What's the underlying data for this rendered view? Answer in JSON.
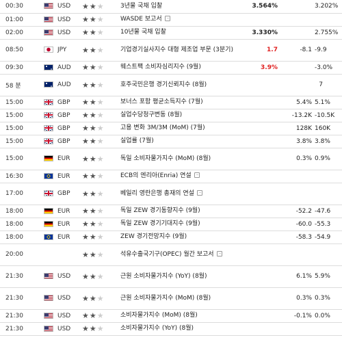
{
  "rows": [
    {
      "time": "00:30",
      "flag": "us",
      "currency": "USD",
      "stars": 2,
      "event": "3년물 국채 입찰",
      "doc": false,
      "actual": "3.564%",
      "actual_color": "",
      "forecast": "",
      "previous": "3.202%",
      "h": 20
    },
    {
      "time": "01:00",
      "flag": "us",
      "currency": "USD",
      "stars": 2,
      "event": "WASDE 보고서",
      "doc": true,
      "actual": "",
      "actual_color": "",
      "forecast": "",
      "previous": "",
      "h": 20
    },
    {
      "time": "02:00",
      "flag": "us",
      "currency": "USD",
      "stars": 2,
      "event": "10년물 국채 입찰",
      "doc": false,
      "actual": "3.330%",
      "actual_color": "",
      "forecast": "",
      "previous": "2.755%",
      "h": 20
    },
    {
      "time": "08:50",
      "flag": "jp",
      "currency": "JPY",
      "stars": 2,
      "event": "기업경기실사지수 대형 제조업 부문 (3분기)",
      "doc": false,
      "actual": "1.7",
      "actual_color": "red",
      "forecast": "-8.1",
      "previous": "-9.9",
      "h": 33
    },
    {
      "time": "09:30",
      "flag": "au",
      "currency": "AUD",
      "stars": 2,
      "event": "웨스트팩 소비자심리지수 (9월)",
      "doc": false,
      "actual": "3.9%",
      "actual_color": "red",
      "forecast": "",
      "previous": "-3.0%",
      "h": 20
    },
    {
      "time": "58 분",
      "flag": "au",
      "currency": "AUD",
      "stars": 2,
      "event": "호주국민은행 경기신뢰지수 (8월)",
      "doc": false,
      "actual": "",
      "actual_color": "",
      "forecast": "",
      "previous": "7",
      "h": 33
    },
    {
      "time": "15:00",
      "flag": "gb",
      "currency": "GBP",
      "stars": 2,
      "event": "보너스 포함 평균소득지수 (7월)",
      "doc": false,
      "actual": "",
      "actual_color": "",
      "forecast": "5.4%",
      "previous": "5.1%",
      "h": 20
    },
    {
      "time": "15:00",
      "flag": "gb",
      "currency": "GBP",
      "stars": 2,
      "event": "실업수당청구변동 (8월)",
      "doc": false,
      "actual": "",
      "actual_color": "",
      "forecast": "-13.2K",
      "previous": "-10.5K",
      "h": 20
    },
    {
      "time": "15:00",
      "flag": "gb",
      "currency": "GBP",
      "stars": 2,
      "event": "고용 변화 3M/3M (MoM) (7월)",
      "doc": false,
      "actual": "",
      "actual_color": "",
      "forecast": "128K",
      "previous": "160K",
      "h": 20
    },
    {
      "time": "15:00",
      "flag": "gb",
      "currency": "GBP",
      "stars": 2,
      "event": "실업률 (7월)",
      "doc": false,
      "actual": "",
      "actual_color": "",
      "forecast": "3.8%",
      "previous": "3.8%",
      "h": 20
    },
    {
      "time": "15:00",
      "flag": "de",
      "currency": "EUR",
      "stars": 2,
      "event": "독일 소비자물가지수 (MoM) (8월)",
      "doc": false,
      "actual": "",
      "actual_color": "",
      "forecast": "0.3%",
      "previous": "0.9%",
      "h": 33
    },
    {
      "time": "16:30",
      "flag": "eu",
      "currency": "EUR",
      "stars": 2,
      "event": "ECB의 엔리아(Enria) 연설",
      "doc": true,
      "actual": "",
      "actual_color": "",
      "forecast": "",
      "previous": "",
      "h": 20
    },
    {
      "time": "17:00",
      "flag": "gb",
      "currency": "GBP",
      "stars": 2,
      "event": "베일리 영란은행 총재의 연설",
      "doc": true,
      "actual": "",
      "actual_color": "",
      "forecast": "",
      "previous": "",
      "h": 33
    },
    {
      "time": "18:00",
      "flag": "de",
      "currency": "EUR",
      "stars": 2,
      "event": "독일 ZEW 경기동향지수 (9월)",
      "doc": false,
      "actual": "",
      "actual_color": "",
      "forecast": "-52.2",
      "previous": "-47.6",
      "h": 20
    },
    {
      "time": "18:00",
      "flag": "de",
      "currency": "EUR",
      "stars": 2,
      "event": "독일 ZEW 경기기대지수 (9월)",
      "doc": false,
      "actual": "",
      "actual_color": "",
      "forecast": "-60.0",
      "previous": "-55.3",
      "h": 20
    },
    {
      "time": "18:00",
      "flag": "eu",
      "currency": "EUR",
      "stars": 2,
      "event": "ZEW 경기전망지수 (9월)",
      "doc": false,
      "actual": "",
      "actual_color": "",
      "forecast": "-58.3",
      "previous": "-54.9",
      "h": 20
    },
    {
      "time": "20:00",
      "flag": "",
      "currency": "",
      "stars": 2,
      "event": "석유수출국기구(OPEC) 월간 보고서",
      "doc": true,
      "actual": "",
      "actual_color": "",
      "forecast": "",
      "previous": "",
      "h": 33
    },
    {
      "time": "21:30",
      "flag": "us",
      "currency": "USD",
      "stars": 2,
      "event": "근원 소비자물가지수 (YoY) (8월)",
      "doc": false,
      "actual": "",
      "actual_color": "",
      "forecast": "6.1%",
      "previous": "5.9%",
      "h": 33
    },
    {
      "time": "21:30",
      "flag": "us",
      "currency": "USD",
      "stars": 2,
      "event": "근원 소비자물가지수 (MoM) (8월)",
      "doc": false,
      "actual": "",
      "actual_color": "",
      "forecast": "0.3%",
      "previous": "0.3%",
      "h": 33
    },
    {
      "time": "21:30",
      "flag": "us",
      "currency": "USD",
      "stars": 2,
      "event": "소비자물가지수 (MoM) (8월)",
      "doc": false,
      "actual": "",
      "actual_color": "",
      "forecast": "-0.1%",
      "previous": "0.0%",
      "h": 20
    },
    {
      "time": "21:30",
      "flag": "us",
      "currency": "USD",
      "stars": 2,
      "event": "소비자물가지수 (YoY) (8월)",
      "doc": false,
      "actual": "",
      "actual_color": "",
      "forecast": "",
      "previous": "",
      "h": 20
    }
  ]
}
